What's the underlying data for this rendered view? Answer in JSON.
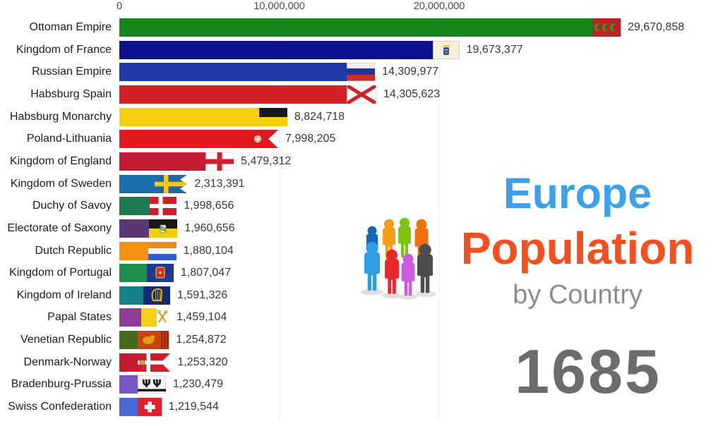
{
  "chart_data": {
    "type": "bar",
    "orientation": "horizontal",
    "title": "Europe Population by Country",
    "year": "1685",
    "xlim": [
      0,
      30500000
    ],
    "x_ticks": [
      0,
      10000000,
      20000000
    ],
    "x_tick_labels": [
      "0",
      "10,000,000",
      "20,000,000"
    ],
    "grid": "faint-vertical",
    "categories": [
      "Ottoman Empire",
      "Kingdom of France",
      "Russian Empire",
      "Habsburg Spain",
      "Habsburg Monarchy",
      "Poland-Lithuania",
      "Kingdom of England",
      "Kingdom of Sweden",
      "Duchy of Savoy",
      "Electorate of Saxony",
      "Dutch Republic",
      "Kingdom of Portugal",
      "Kingdom of Ireland",
      "Papal States",
      "Venetian Republic",
      "Denmark-Norway",
      "Bradenburg-Prussia",
      "Swiss Confederation"
    ],
    "values": [
      29670858,
      19673377,
      14309977,
      14305623,
      8824718,
      7998205,
      5479312,
      2313391,
      1998656,
      1960656,
      1880104,
      1807047,
      1591326,
      1459104,
      1254872,
      1253320,
      1230479,
      1219544
    ],
    "value_labels": [
      "29,670,858",
      "19,673,377",
      "14,309,977",
      "14,305,623",
      "8,824,718",
      "7,998,205",
      "5,479,312",
      "2,313,391",
      "1,998,656",
      "1,960,656",
      "1,880,104",
      "1,807,047",
      "1,591,326",
      "1,459,104",
      "1,254,872",
      "1,253,320",
      "1,230,479",
      "1,219,544"
    ],
    "bar_colors": [
      "#16861d",
      "#0e118e",
      "#1e3aa8",
      "#d42027",
      "#f6cf12",
      "#e31a1f",
      "#c41d33",
      "#1b6fad",
      "#1d7a52",
      "#5c3777",
      "#f39210",
      "#1f8f4e",
      "#15828a",
      "#8e3d98",
      "#47691f",
      "#c41d33",
      "#7a58c4",
      "#4a6ad8"
    ],
    "flags": [
      "ottoman",
      "france-royal",
      "russia",
      "burgundy-cross",
      "habsburg",
      "poland-lithuania",
      "england",
      "sweden",
      "savoy",
      "saxony",
      "dutch-republic",
      "portugal",
      "ireland",
      "papal",
      "venice",
      "denmark-norway",
      "brandenburg",
      "swiss"
    ]
  },
  "branding": {
    "title_line1": "Europe",
    "title_line2": "Population",
    "title_line3": "by Country",
    "year": "1685",
    "colors": {
      "europe": "#3da0ea",
      "population": "#f2501f",
      "by_country": "#8e8e8e",
      "year": "#6e6b6e"
    },
    "people_icon_colors": [
      "#1766b5",
      "#f59d16",
      "#7ec310",
      "#f2700c",
      "#2e9fe3",
      "#e8282c",
      "#cb5ce0",
      "#4d4d4d"
    ]
  }
}
